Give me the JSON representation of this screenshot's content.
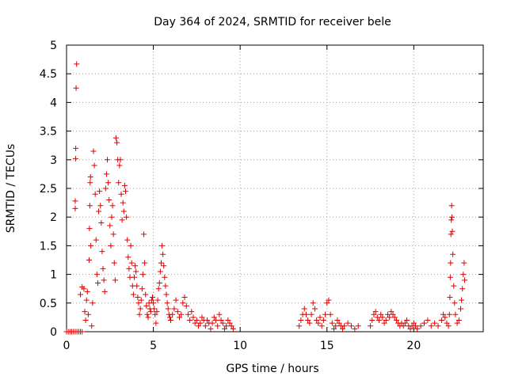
{
  "chart_data": {
    "type": "scatter",
    "title": "Day 364 of 2024, SRMTID for receiver bele",
    "xlabel": "GPS time / hours",
    "ylabel": "SRMTID / TECUs",
    "xlim": [
      0,
      24
    ],
    "ylim": [
      0,
      5
    ],
    "xticks": [
      0,
      5,
      10,
      15,
      20
    ],
    "yticks": [
      0,
      0.5,
      1,
      1.5,
      2,
      2.5,
      3,
      3.5,
      4,
      4.5,
      5
    ],
    "xtick_labels": [
      "0",
      "5",
      "10",
      "15",
      "20"
    ],
    "ytick_labels": [
      "0",
      "0.5",
      "1",
      "1.5",
      "2",
      "2.5",
      "3",
      "3.5",
      "4",
      "4.5",
      "5"
    ],
    "grid": true,
    "marker": "+",
    "color": "#e00000",
    "series": [
      {
        "name": "SRMTID",
        "points": [
          [
            0.0,
            0.0
          ],
          [
            0.1,
            0.0
          ],
          [
            0.2,
            0.0
          ],
          [
            0.3,
            0.0
          ],
          [
            0.4,
            0.0
          ],
          [
            0.5,
            0.0
          ],
          [
            0.6,
            0.0
          ],
          [
            0.7,
            0.0
          ],
          [
            0.8,
            0.0
          ],
          [
            0.9,
            0.0
          ],
          [
            0.5,
            2.15
          ],
          [
            0.5,
            2.28
          ],
          [
            0.52,
            3.02
          ],
          [
            0.53,
            3.2
          ],
          [
            0.55,
            4.25
          ],
          [
            0.58,
            4.67
          ],
          [
            0.8,
            0.65
          ],
          [
            0.9,
            0.78
          ],
          [
            1.0,
            0.75
          ],
          [
            1.05,
            0.35
          ],
          [
            1.1,
            0.2
          ],
          [
            1.15,
            0.55
          ],
          [
            1.2,
            0.7
          ],
          [
            1.25,
            0.3
          ],
          [
            1.3,
            1.25
          ],
          [
            1.32,
            1.8
          ],
          [
            1.34,
            2.2
          ],
          [
            1.36,
            2.6
          ],
          [
            1.38,
            2.7
          ],
          [
            1.4,
            1.5
          ],
          [
            1.45,
            0.1
          ],
          [
            1.5,
            0.5
          ],
          [
            1.55,
            3.15
          ],
          [
            1.6,
            2.9
          ],
          [
            1.65,
            2.4
          ],
          [
            1.7,
            1.6
          ],
          [
            1.75,
            1.0
          ],
          [
            1.8,
            0.85
          ],
          [
            1.85,
            2.1
          ],
          [
            1.9,
            2.45
          ],
          [
            1.95,
            2.2
          ],
          [
            2.0,
            1.9
          ],
          [
            2.05,
            1.4
          ],
          [
            2.1,
            1.1
          ],
          [
            2.15,
            0.9
          ],
          [
            2.2,
            0.7
          ],
          [
            2.25,
            2.5
          ],
          [
            2.3,
            2.75
          ],
          [
            2.35,
            3.0
          ],
          [
            2.4,
            2.6
          ],
          [
            2.45,
            2.3
          ],
          [
            2.5,
            1.85
          ],
          [
            2.55,
            1.5
          ],
          [
            2.6,
            2.0
          ],
          [
            2.65,
            2.2
          ],
          [
            2.7,
            1.7
          ],
          [
            2.75,
            1.2
          ],
          [
            2.8,
            0.9
          ],
          [
            2.85,
            3.38
          ],
          [
            2.9,
            3.3
          ],
          [
            2.95,
            3.0
          ],
          [
            3.0,
            2.6
          ],
          [
            3.05,
            2.9
          ],
          [
            3.1,
            3.0
          ],
          [
            3.15,
            2.4
          ],
          [
            3.2,
            1.95
          ],
          [
            3.25,
            2.25
          ],
          [
            3.3,
            2.1
          ],
          [
            3.35,
            2.55
          ],
          [
            3.4,
            2.45
          ],
          [
            3.45,
            2.0
          ],
          [
            3.5,
            1.6
          ],
          [
            3.55,
            1.3
          ],
          [
            3.6,
            1.1
          ],
          [
            3.65,
            0.95
          ],
          [
            3.7,
            1.5
          ],
          [
            3.75,
            1.2
          ],
          [
            3.8,
            0.8
          ],
          [
            3.85,
            0.65
          ],
          [
            3.9,
            0.95
          ],
          [
            3.95,
            1.15
          ],
          [
            4.0,
            1.05
          ],
          [
            4.05,
            0.8
          ],
          [
            4.1,
            0.6
          ],
          [
            4.15,
            0.5
          ],
          [
            4.2,
            0.3
          ],
          [
            4.25,
            0.4
          ],
          [
            4.3,
            0.55
          ],
          [
            4.35,
            0.75
          ],
          [
            4.4,
            1.0
          ],
          [
            4.45,
            1.7
          ],
          [
            4.5,
            1.2
          ],
          [
            4.55,
            0.65
          ],
          [
            4.6,
            0.45
          ],
          [
            4.65,
            0.3
          ],
          [
            4.7,
            0.25
          ],
          [
            4.75,
            0.5
          ],
          [
            4.8,
            0.4
          ],
          [
            4.85,
            0.35
          ],
          [
            4.9,
            0.55
          ],
          [
            4.95,
            0.6
          ],
          [
            5.0,
            0.5
          ],
          [
            5.05,
            0.4
          ],
          [
            5.1,
            0.3
          ],
          [
            5.15,
            0.15
          ],
          [
            5.2,
            0.35
          ],
          [
            5.25,
            0.55
          ],
          [
            5.3,
            0.75
          ],
          [
            5.35,
            0.85
          ],
          [
            5.4,
            1.05
          ],
          [
            5.45,
            1.2
          ],
          [
            5.5,
            1.5
          ],
          [
            5.55,
            1.35
          ],
          [
            5.6,
            1.15
          ],
          [
            5.65,
            0.95
          ],
          [
            5.7,
            0.8
          ],
          [
            5.75,
            0.65
          ],
          [
            5.8,
            0.5
          ],
          [
            5.85,
            0.4
          ],
          [
            5.9,
            0.3
          ],
          [
            5.95,
            0.25
          ],
          [
            6.0,
            0.2
          ],
          [
            6.1,
            0.3
          ],
          [
            6.2,
            0.4
          ],
          [
            6.3,
            0.55
          ],
          [
            6.4,
            0.35
          ],
          [
            6.5,
            0.25
          ],
          [
            6.6,
            0.3
          ],
          [
            6.7,
            0.5
          ],
          [
            6.8,
            0.6
          ],
          [
            6.9,
            0.45
          ],
          [
            7.0,
            0.3
          ],
          [
            7.1,
            0.2
          ],
          [
            7.2,
            0.35
          ],
          [
            7.3,
            0.25
          ],
          [
            7.4,
            0.15
          ],
          [
            7.5,
            0.2
          ],
          [
            7.6,
            0.1
          ],
          [
            7.7,
            0.15
          ],
          [
            7.8,
            0.25
          ],
          [
            7.9,
            0.2
          ],
          [
            8.0,
            0.1
          ],
          [
            8.1,
            0.2
          ],
          [
            8.2,
            0.15
          ],
          [
            8.3,
            0.05
          ],
          [
            8.4,
            0.15
          ],
          [
            8.5,
            0.25
          ],
          [
            8.6,
            0.2
          ],
          [
            8.7,
            0.1
          ],
          [
            8.8,
            0.3
          ],
          [
            8.9,
            0.2
          ],
          [
            9.0,
            0.15
          ],
          [
            9.1,
            0.05
          ],
          [
            9.2,
            0.1
          ],
          [
            9.3,
            0.2
          ],
          [
            9.4,
            0.15
          ],
          [
            9.5,
            0.1
          ],
          [
            9.6,
            0.05
          ],
          [
            13.4,
            0.1
          ],
          [
            13.5,
            0.2
          ],
          [
            13.6,
            0.3
          ],
          [
            13.7,
            0.4
          ],
          [
            13.8,
            0.3
          ],
          [
            13.9,
            0.2
          ],
          [
            14.0,
            0.15
          ],
          [
            14.1,
            0.3
          ],
          [
            14.2,
            0.5
          ],
          [
            14.3,
            0.4
          ],
          [
            14.4,
            0.2
          ],
          [
            14.5,
            0.15
          ],
          [
            14.6,
            0.25
          ],
          [
            14.7,
            0.1
          ],
          [
            14.8,
            0.2
          ],
          [
            14.9,
            0.3
          ],
          [
            15.0,
            0.5
          ],
          [
            15.1,
            0.55
          ],
          [
            15.2,
            0.3
          ],
          [
            15.3,
            0.15
          ],
          [
            15.4,
            0.05
          ],
          [
            15.5,
            0.1
          ],
          [
            15.6,
            0.2
          ],
          [
            15.7,
            0.15
          ],
          [
            15.8,
            0.1
          ],
          [
            15.9,
            0.05
          ],
          [
            16.0,
            0.1
          ],
          [
            16.2,
            0.15
          ],
          [
            16.4,
            0.1
          ],
          [
            16.6,
            0.05
          ],
          [
            16.8,
            0.1
          ],
          [
            17.5,
            0.1
          ],
          [
            17.6,
            0.2
          ],
          [
            17.7,
            0.3
          ],
          [
            17.8,
            0.35
          ],
          [
            17.9,
            0.25
          ],
          [
            18.0,
            0.2
          ],
          [
            18.1,
            0.3
          ],
          [
            18.2,
            0.25
          ],
          [
            18.3,
            0.15
          ],
          [
            18.4,
            0.2
          ],
          [
            18.5,
            0.3
          ],
          [
            18.6,
            0.25
          ],
          [
            18.7,
            0.35
          ],
          [
            18.8,
            0.3
          ],
          [
            18.9,
            0.25
          ],
          [
            19.0,
            0.2
          ],
          [
            19.1,
            0.15
          ],
          [
            19.2,
            0.1
          ],
          [
            19.3,
            0.15
          ],
          [
            19.4,
            0.1
          ],
          [
            19.5,
            0.15
          ],
          [
            19.6,
            0.2
          ],
          [
            19.7,
            0.1
          ],
          [
            19.8,
            0.05
          ],
          [
            19.9,
            0.1
          ],
          [
            20.0,
            0.15
          ],
          [
            20.1,
            0.1
          ],
          [
            20.2,
            0.05
          ],
          [
            20.4,
            0.1
          ],
          [
            20.6,
            0.15
          ],
          [
            20.8,
            0.2
          ],
          [
            21.0,
            0.1
          ],
          [
            21.2,
            0.15
          ],
          [
            21.4,
            0.1
          ],
          [
            21.6,
            0.2
          ],
          [
            21.7,
            0.3
          ],
          [
            21.8,
            0.25
          ],
          [
            21.9,
            0.15
          ],
          [
            22.0,
            0.1
          ],
          [
            22.05,
            0.3
          ],
          [
            22.08,
            0.6
          ],
          [
            22.1,
            0.95
          ],
          [
            22.12,
            1.2
          ],
          [
            22.14,
            1.7
          ],
          [
            22.16,
            1.95
          ],
          [
            22.18,
            2.2
          ],
          [
            22.2,
            2.0
          ],
          [
            22.22,
            1.75
          ],
          [
            22.25,
            1.35
          ],
          [
            22.3,
            0.8
          ],
          [
            22.35,
            0.5
          ],
          [
            22.4,
            0.3
          ],
          [
            22.5,
            0.15
          ],
          [
            22.6,
            0.2
          ],
          [
            22.7,
            0.4
          ],
          [
            22.75,
            0.55
          ],
          [
            22.8,
            0.75
          ],
          [
            22.85,
            1.0
          ],
          [
            22.9,
            1.2
          ],
          [
            22.93,
            0.9
          ]
        ]
      }
    ]
  }
}
